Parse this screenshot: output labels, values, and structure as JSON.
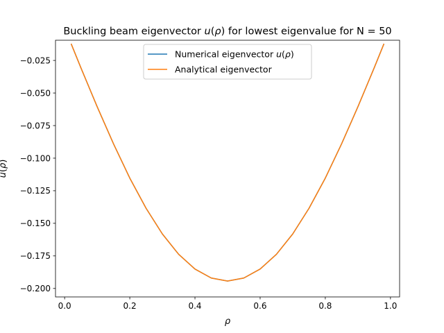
{
  "chart_data": {
    "type": "line",
    "title": "Buckling beam eigenvector u(ρ) for lowest eigenvalue for N = 50",
    "xlabel": "ρ",
    "ylabel": "u(ρ)",
    "xlim": [
      -0.028,
      1.028
    ],
    "ylim": [
      -0.2065,
      -0.0095
    ],
    "x_ticks": [
      0.0,
      0.2,
      0.4,
      0.6,
      0.8,
      1.0
    ],
    "x_tick_labels": [
      "0.0",
      "0.2",
      "0.4",
      "0.6",
      "0.8",
      "1.0"
    ],
    "y_ticks": [
      -0.025,
      -0.05,
      -0.075,
      -0.1,
      -0.125,
      -0.15,
      -0.175,
      -0.2
    ],
    "y_tick_labels": [
      "−0.025",
      "−0.050",
      "−0.075",
      "−0.100",
      "−0.125",
      "−0.150",
      "−0.175",
      "−0.200"
    ],
    "grid": false,
    "legend_placement": "top-center",
    "x": [
      0.02,
      0.05,
      0.1,
      0.15,
      0.2,
      0.25,
      0.3,
      0.35,
      0.4,
      0.45,
      0.5,
      0.55,
      0.6,
      0.65,
      0.7,
      0.75,
      0.8,
      0.85,
      0.9,
      0.95,
      0.98
    ],
    "series": [
      {
        "name": "Numerical eigenvector u(ρ)",
        "color": "#1f77b4",
        "values": [
          -0.0122,
          -0.0307,
          -0.0606,
          -0.089,
          -0.1153,
          -0.1385,
          -0.1582,
          -0.1738,
          -0.1851,
          -0.192,
          -0.1943,
          -0.192,
          -0.1851,
          -0.1738,
          -0.1582,
          -0.1385,
          -0.1153,
          -0.089,
          -0.0606,
          -0.0307,
          -0.0122
        ]
      },
      {
        "name": "Analytical eigenvector",
        "color": "#ff7f0e",
        "values": [
          -0.0122,
          -0.0307,
          -0.0606,
          -0.089,
          -0.1153,
          -0.1385,
          -0.1582,
          -0.1738,
          -0.1851,
          -0.192,
          -0.1943,
          -0.192,
          -0.1851,
          -0.1738,
          -0.1582,
          -0.1385,
          -0.1153,
          -0.089,
          -0.0606,
          -0.0307,
          -0.0122
        ]
      }
    ]
  }
}
